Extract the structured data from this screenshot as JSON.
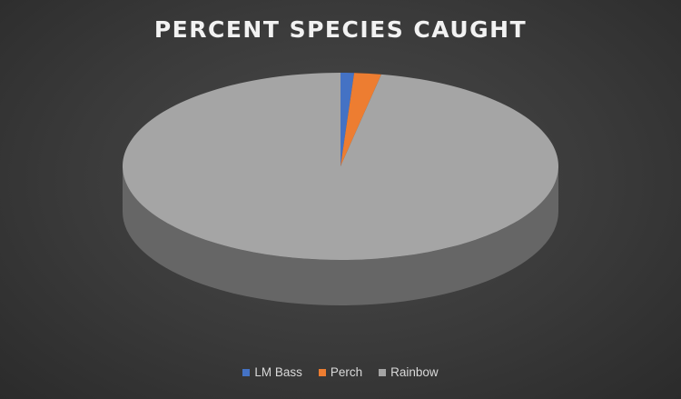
{
  "chart_data": {
    "type": "pie",
    "title": "PERCENT SPECIES CAUGHT",
    "style": "3d",
    "legend_position": "bottom",
    "slices": [
      {
        "label": "LM Bass",
        "value": 1,
        "color": "#4472c4"
      },
      {
        "label": "Perch",
        "value": 2,
        "color": "#ed7d31"
      },
      {
        "label": "Rainbow",
        "value": 97,
        "color": "#a5a5a5"
      }
    ]
  }
}
